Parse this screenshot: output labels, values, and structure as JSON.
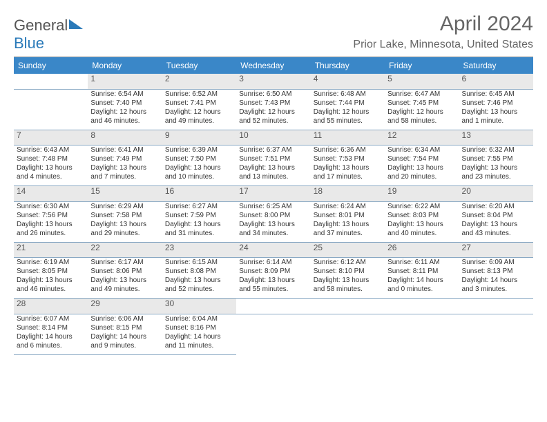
{
  "brand": {
    "name_a": "General",
    "name_b": "Blue",
    "logo_color": "#2a7ab9"
  },
  "header": {
    "month_title": "April 2024",
    "location": "Prior Lake, Minnesota, United States"
  },
  "colors": {
    "header_bg": "#3a87c8",
    "header_fg": "#ffffff",
    "daynum_bg": "#e9e9e9",
    "row_border": "#8aa9c4",
    "text": "#333333",
    "title_text": "#666666"
  },
  "fonts": {
    "title_size_pt": 30,
    "location_size_pt": 16,
    "dayhead_size_pt": 12,
    "cell_size_pt": 10
  },
  "weekdays": [
    "Sunday",
    "Monday",
    "Tuesday",
    "Wednesday",
    "Thursday",
    "Friday",
    "Saturday"
  ],
  "weeks": [
    [
      null,
      {
        "n": "1",
        "sunrise": "6:54 AM",
        "sunset": "7:40 PM",
        "daylight": "12 hours and 46 minutes."
      },
      {
        "n": "2",
        "sunrise": "6:52 AM",
        "sunset": "7:41 PM",
        "daylight": "12 hours and 49 minutes."
      },
      {
        "n": "3",
        "sunrise": "6:50 AM",
        "sunset": "7:43 PM",
        "daylight": "12 hours and 52 minutes."
      },
      {
        "n": "4",
        "sunrise": "6:48 AM",
        "sunset": "7:44 PM",
        "daylight": "12 hours and 55 minutes."
      },
      {
        "n": "5",
        "sunrise": "6:47 AM",
        "sunset": "7:45 PM",
        "daylight": "12 hours and 58 minutes."
      },
      {
        "n": "6",
        "sunrise": "6:45 AM",
        "sunset": "7:46 PM",
        "daylight": "13 hours and 1 minute."
      }
    ],
    [
      {
        "n": "7",
        "sunrise": "6:43 AM",
        "sunset": "7:48 PM",
        "daylight": "13 hours and 4 minutes."
      },
      {
        "n": "8",
        "sunrise": "6:41 AM",
        "sunset": "7:49 PM",
        "daylight": "13 hours and 7 minutes."
      },
      {
        "n": "9",
        "sunrise": "6:39 AM",
        "sunset": "7:50 PM",
        "daylight": "13 hours and 10 minutes."
      },
      {
        "n": "10",
        "sunrise": "6:37 AM",
        "sunset": "7:51 PM",
        "daylight": "13 hours and 13 minutes."
      },
      {
        "n": "11",
        "sunrise": "6:36 AM",
        "sunset": "7:53 PM",
        "daylight": "13 hours and 17 minutes."
      },
      {
        "n": "12",
        "sunrise": "6:34 AM",
        "sunset": "7:54 PM",
        "daylight": "13 hours and 20 minutes."
      },
      {
        "n": "13",
        "sunrise": "6:32 AM",
        "sunset": "7:55 PM",
        "daylight": "13 hours and 23 minutes."
      }
    ],
    [
      {
        "n": "14",
        "sunrise": "6:30 AM",
        "sunset": "7:56 PM",
        "daylight": "13 hours and 26 minutes."
      },
      {
        "n": "15",
        "sunrise": "6:29 AM",
        "sunset": "7:58 PM",
        "daylight": "13 hours and 29 minutes."
      },
      {
        "n": "16",
        "sunrise": "6:27 AM",
        "sunset": "7:59 PM",
        "daylight": "13 hours and 31 minutes."
      },
      {
        "n": "17",
        "sunrise": "6:25 AM",
        "sunset": "8:00 PM",
        "daylight": "13 hours and 34 minutes."
      },
      {
        "n": "18",
        "sunrise": "6:24 AM",
        "sunset": "8:01 PM",
        "daylight": "13 hours and 37 minutes."
      },
      {
        "n": "19",
        "sunrise": "6:22 AM",
        "sunset": "8:03 PM",
        "daylight": "13 hours and 40 minutes."
      },
      {
        "n": "20",
        "sunrise": "6:20 AM",
        "sunset": "8:04 PM",
        "daylight": "13 hours and 43 minutes."
      }
    ],
    [
      {
        "n": "21",
        "sunrise": "6:19 AM",
        "sunset": "8:05 PM",
        "daylight": "13 hours and 46 minutes."
      },
      {
        "n": "22",
        "sunrise": "6:17 AM",
        "sunset": "8:06 PM",
        "daylight": "13 hours and 49 minutes."
      },
      {
        "n": "23",
        "sunrise": "6:15 AM",
        "sunset": "8:08 PM",
        "daylight": "13 hours and 52 minutes."
      },
      {
        "n": "24",
        "sunrise": "6:14 AM",
        "sunset": "8:09 PM",
        "daylight": "13 hours and 55 minutes."
      },
      {
        "n": "25",
        "sunrise": "6:12 AM",
        "sunset": "8:10 PM",
        "daylight": "13 hours and 58 minutes."
      },
      {
        "n": "26",
        "sunrise": "6:11 AM",
        "sunset": "8:11 PM",
        "daylight": "14 hours and 0 minutes."
      },
      {
        "n": "27",
        "sunrise": "6:09 AM",
        "sunset": "8:13 PM",
        "daylight": "14 hours and 3 minutes."
      }
    ],
    [
      {
        "n": "28",
        "sunrise": "6:07 AM",
        "sunset": "8:14 PM",
        "daylight": "14 hours and 6 minutes."
      },
      {
        "n": "29",
        "sunrise": "6:06 AM",
        "sunset": "8:15 PM",
        "daylight": "14 hours and 9 minutes."
      },
      {
        "n": "30",
        "sunrise": "6:04 AM",
        "sunset": "8:16 PM",
        "daylight": "14 hours and 11 minutes."
      },
      null,
      null,
      null,
      null
    ]
  ],
  "labels": {
    "sunrise": "Sunrise:",
    "sunset": "Sunset:",
    "daylight": "Daylight:"
  }
}
